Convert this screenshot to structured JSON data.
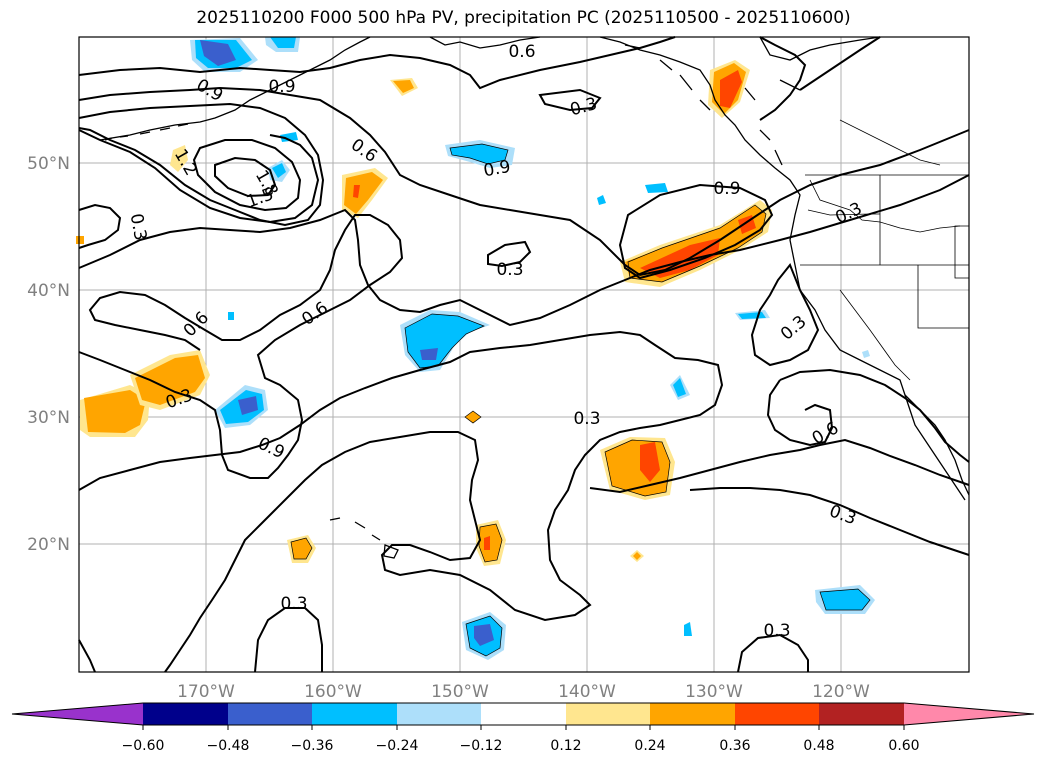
{
  "title": "2025110200 F000 500 hPa PV, precipitation PC (2025110500 - 2025110600)",
  "map": {
    "lon_labels": [
      "170°W",
      "160°W",
      "150°W",
      "140°W",
      "130°W",
      "120°W"
    ],
    "lat_labels": [
      "50°N",
      "40°N",
      "30°N",
      "20°N"
    ],
    "contour_labels": [
      "0.6",
      "0.9",
      "0.9",
      "0.6",
      "1.2",
      "1.8",
      "1.5",
      "0.3",
      "0.9",
      "0.3",
      "0.3",
      "0.9",
      "0.3",
      "0.6",
      "0.6",
      "0.3",
      "0.3",
      "0.9",
      "0.3",
      "0.6",
      "0.3",
      "0.3",
      "0.3"
    ],
    "colors": {
      "neg_060": "#9932CC",
      "neg_048": "#00008B",
      "neg_036": "#3A5FCD",
      "neg_024": "#00BFFF",
      "neg_012": "#ADDFFA",
      "zero": "#FFFFFF",
      "pos_012": "#FFE68F",
      "pos_024": "#FFA500",
      "pos_036": "#FF4500",
      "pos_048": "#B22222",
      "pos_060": "#FF88AA"
    }
  },
  "colorbar": {
    "ticks": [
      "−0.60",
      "−0.48",
      "−0.36",
      "−0.24",
      "−0.12",
      "0.12",
      "0.24",
      "0.36",
      "0.48",
      "0.60"
    ]
  }
}
